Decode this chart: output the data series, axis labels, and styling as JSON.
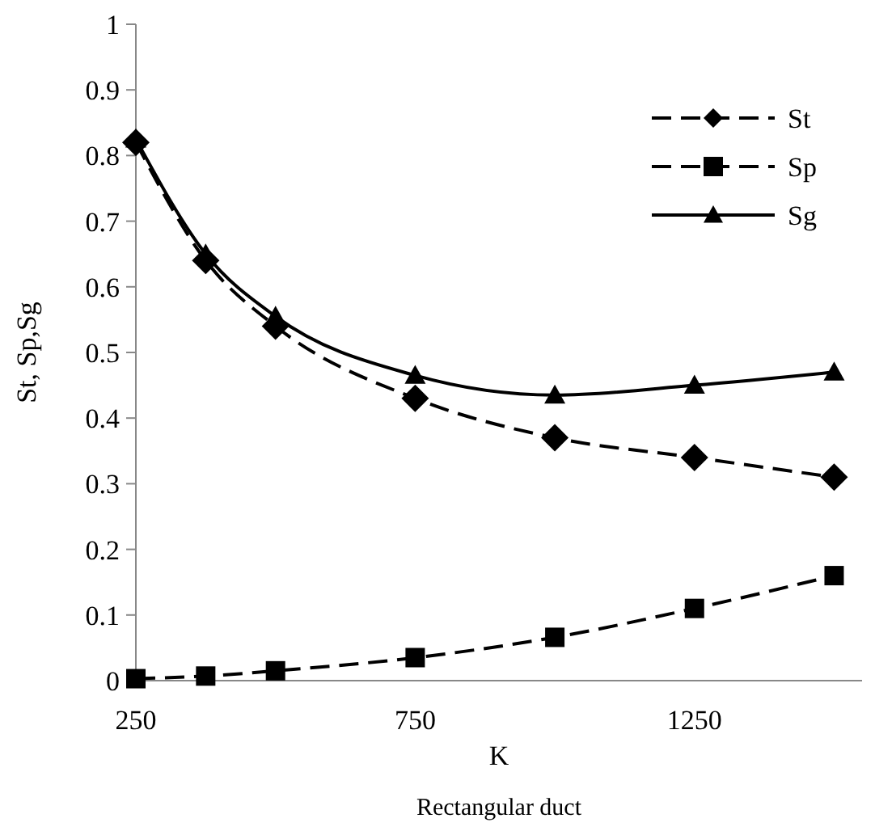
{
  "chart_data": {
    "type": "line",
    "xlabel": "K",
    "ylabel": "St, Sp,Sg",
    "annotations": [
      "Rectangular duct"
    ],
    "x": [
      250,
      375,
      500,
      750,
      1000,
      1250,
      1500
    ],
    "series": [
      {
        "name": "St",
        "color": "#000000",
        "marker": "diamond",
        "line_style": "dashed",
        "values": [
          0.82,
          0.64,
          0.54,
          0.43,
          0.37,
          0.34,
          0.31
        ]
      },
      {
        "name": "Sp",
        "color": "#000000",
        "marker": "square",
        "line_style": "dashed",
        "values": [
          0.003,
          0.007,
          0.015,
          0.035,
          0.066,
          0.11,
          0.16
        ]
      },
      {
        "name": "Sg",
        "color": "#000000",
        "marker": "triangle",
        "line_style": "solid",
        "values": [
          0.825,
          0.65,
          0.555,
          0.465,
          0.435,
          0.45,
          0.47
        ]
      }
    ],
    "xlim": [
      250,
      1550
    ],
    "xticks": [
      250,
      750,
      1250
    ],
    "ylim": [
      0,
      1
    ],
    "yticks": [
      0,
      0.1,
      0.2,
      0.3,
      0.4,
      0.5,
      0.6,
      0.7,
      0.8,
      0.9,
      1
    ],
    "grid": false,
    "legend": "top right"
  }
}
